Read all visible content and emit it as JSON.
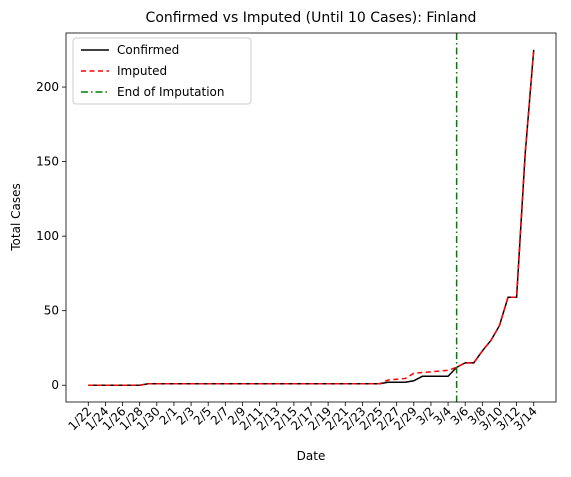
{
  "chart_data": {
    "type": "line",
    "title": "Confirmed vs Imputed (Until 10 Cases): Finland",
    "x_label": "Date",
    "y_label": "Total Cases",
    "categories": [
      "1/22",
      null,
      "1/24",
      null,
      "1/26",
      null,
      "1/28",
      null,
      "1/30",
      null,
      "2/1",
      null,
      "2/3",
      null,
      "2/5",
      null,
      "2/7",
      null,
      "2/9",
      null,
      "2/11",
      null,
      "2/13",
      null,
      "2/15",
      null,
      "2/17",
      null,
      "2/19",
      null,
      "2/21",
      null,
      "2/23",
      null,
      "2/25",
      null,
      "2/27",
      null,
      "2/29",
      null,
      "3/2",
      null,
      "3/4",
      null,
      "3/6",
      null,
      "3/8",
      null,
      "3/10",
      null,
      "3/12",
      null,
      "3/14"
    ],
    "series": [
      {
        "name": "Confirmed",
        "color": "#000000",
        "dash": "solid",
        "values": [
          0,
          0,
          0,
          0,
          0,
          0,
          0,
          1,
          1,
          1,
          1,
          1,
          1,
          1,
          1,
          1,
          1,
          1,
          1,
          1,
          1,
          1,
          1,
          1,
          1,
          1,
          1,
          1,
          1,
          1,
          1,
          1,
          1,
          1,
          1,
          2,
          2,
          2,
          3,
          6,
          6,
          6,
          6,
          12,
          15,
          15,
          23,
          30,
          40,
          59,
          59,
          155,
          225
        ]
      },
      {
        "name": "Imputed",
        "color": "#ff0000",
        "dash": "dashed",
        "values": [
          0,
          0,
          0,
          0,
          0,
          0,
          0,
          1,
          1,
          1,
          1,
          1,
          1,
          1,
          1,
          1,
          1,
          1,
          1,
          1,
          1,
          1,
          1,
          1,
          1,
          1,
          1,
          1,
          1,
          1,
          1,
          1,
          1,
          1,
          1,
          3.5,
          4,
          4.5,
          8,
          8.5,
          9,
          9.5,
          10,
          12,
          15,
          15,
          23,
          30,
          40,
          59,
          59,
          155,
          225
        ]
      }
    ],
    "vline": {
      "name": "End of Imputation",
      "x": 43,
      "color": "#008000"
    },
    "ylim": [
      -11.25,
      236.25
    ],
    "yticks": [
      0,
      50,
      100,
      150,
      200
    ],
    "legend": "upper left"
  }
}
